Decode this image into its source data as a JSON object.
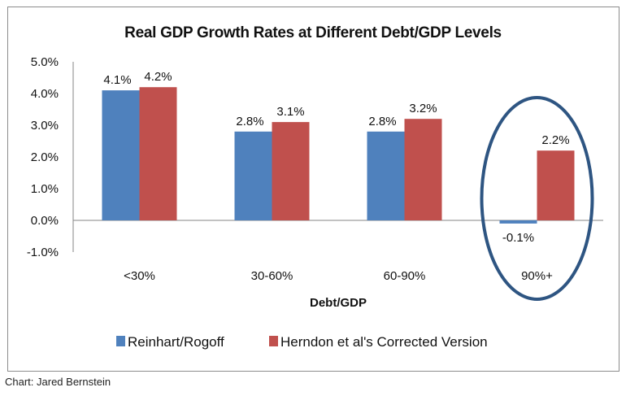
{
  "chart_data": {
    "type": "bar",
    "title": "Real GDP Growth Rates at Different Debt/GDP Levels",
    "xlabel": "Debt/GDP",
    "ylabel": "",
    "categories": [
      "<30%",
      "30-60%",
      "60-90%",
      "90%+"
    ],
    "series": [
      {
        "name": "Reinhart/Rogoff",
        "color": "#4F81BD",
        "values": [
          4.1,
          2.8,
          2.8,
          -0.1
        ],
        "labels": [
          "4.1%",
          "2.8%",
          "2.8%",
          "-0.1%"
        ]
      },
      {
        "name": "Herndon et al's Corrected Version",
        "color": "#C0504D",
        "values": [
          4.2,
          3.1,
          3.2,
          2.2
        ],
        "labels": [
          "4.2%",
          "3.1%",
          "3.2%",
          "2.2%"
        ]
      }
    ],
    "ylim": [
      -1.0,
      5.0
    ],
    "yticks": [
      5.0,
      4.0,
      3.0,
      2.0,
      1.0,
      0.0,
      -1.0
    ],
    "ytick_labels": [
      "5.0%",
      "4.0%",
      "3.0%",
      "2.0%",
      "1.0%",
      "0.0%",
      "-1.0%"
    ],
    "grid": false,
    "legend": "bottom",
    "annotation": {
      "type": "ellipse",
      "target_category": "90%+",
      "color": "#2E5582"
    }
  },
  "credit": "Chart: Jared Bernstein"
}
